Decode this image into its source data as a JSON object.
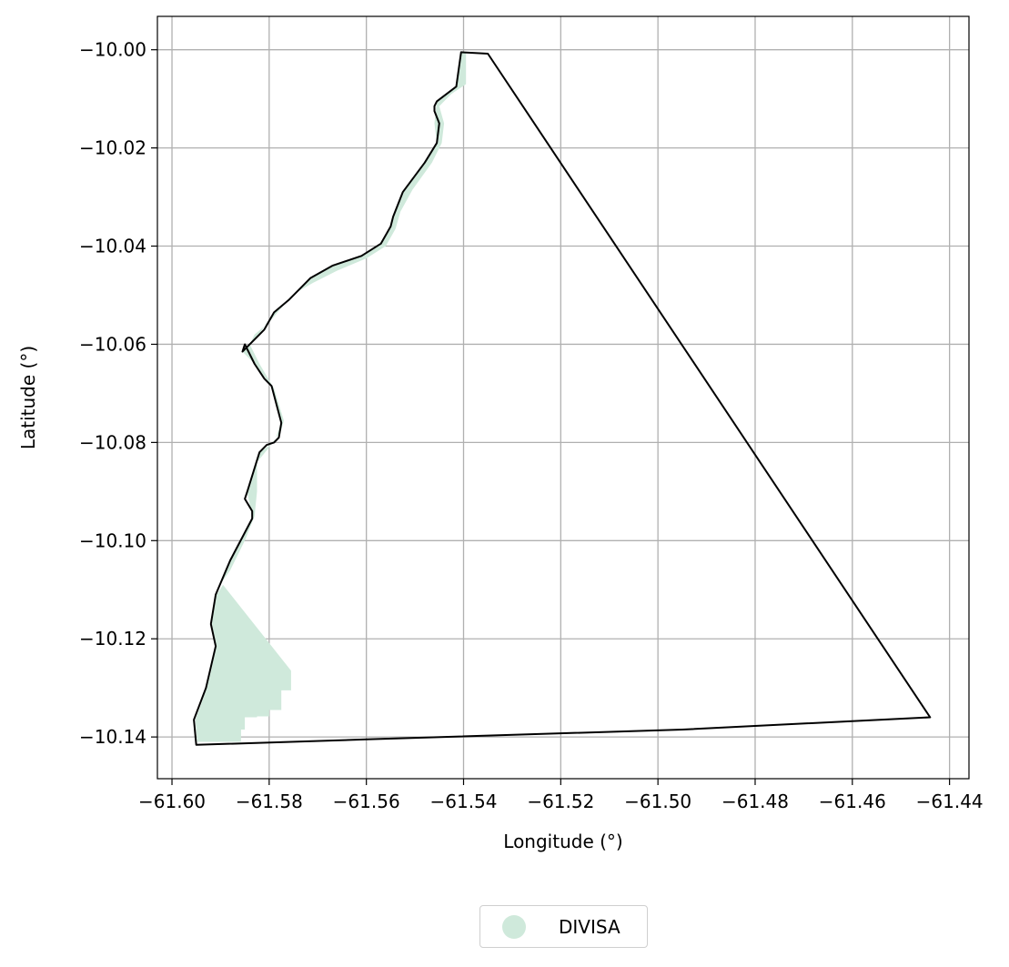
{
  "map": {
    "xlabel": "Longitude (°)",
    "ylabel": "Latitude (°)",
    "x_ticks": [
      -61.6,
      -61.58,
      -61.56,
      -61.54,
      -61.52,
      -61.5,
      -61.48,
      -61.46,
      -61.44
    ],
    "y_ticks": [
      -10.0,
      -10.02,
      -10.04,
      -10.06,
      -10.08,
      -10.1,
      -10.12,
      -10.14
    ],
    "xlim": [
      -61.603,
      -61.436
    ],
    "ylim": [
      -10.1485,
      -9.9932
    ],
    "grid": true,
    "colors": {
      "boundary": "#000000",
      "fill": "#cfe9db",
      "grid": "#b0b0b0"
    },
    "boundary_polygon": [
      [
        -61.595,
        -10.1416
      ],
      [
        -61.5955,
        -10.1365
      ],
      [
        -61.593,
        -10.13
      ],
      [
        -61.591,
        -10.1215
      ],
      [
        -61.592,
        -10.117
      ],
      [
        -61.591,
        -10.111
      ],
      [
        -61.588,
        -10.104
      ],
      [
        -61.5835,
        -10.0955
      ],
      [
        -61.5835,
        -10.094
      ],
      [
        -61.585,
        -10.0915
      ],
      [
        -61.5845,
        -10.09
      ],
      [
        -61.582,
        -10.082
      ],
      [
        -61.5805,
        -10.0805
      ],
      [
        -61.579,
        -10.08
      ],
      [
        -61.578,
        -10.079
      ],
      [
        -61.5775,
        -10.076
      ],
      [
        -61.5795,
        -10.0685
      ],
      [
        -61.581,
        -10.067
      ],
      [
        -61.583,
        -10.064
      ],
      [
        -61.585,
        -10.06
      ],
      [
        -61.5855,
        -10.0615
      ],
      [
        -61.5825,
        -10.0585
      ],
      [
        -61.581,
        -10.057
      ],
      [
        -61.579,
        -10.0535
      ],
      [
        -61.576,
        -10.051
      ],
      [
        -61.5735,
        -10.0485
      ],
      [
        -61.5715,
        -10.0465
      ],
      [
        -61.567,
        -10.044
      ],
      [
        -61.561,
        -10.042
      ],
      [
        -61.557,
        -10.0395
      ],
      [
        -61.555,
        -10.036
      ],
      [
        -61.5545,
        -10.034
      ],
      [
        -61.5525,
        -10.029
      ],
      [
        -61.548,
        -10.023
      ],
      [
        -61.5455,
        -10.019
      ],
      [
        -61.545,
        -10.015
      ],
      [
        -61.546,
        -10.0125
      ],
      [
        -61.546,
        -10.0115
      ],
      [
        -61.5455,
        -10.0105
      ],
      [
        -61.5435,
        -10.009
      ],
      [
        -61.5415,
        -10.0075
      ],
      [
        -61.5405,
        -10.0005
      ],
      [
        -61.535,
        -10.0008
      ],
      [
        -61.444,
        -10.136
      ],
      [
        -61.495,
        -10.1385
      ],
      [
        -61.56,
        -10.1405
      ],
      [
        -61.595,
        -10.1416
      ]
    ],
    "divisa_polygon": [
      [
        -61.5905,
        -10.1095
      ],
      [
        -61.588,
        -10.106
      ],
      [
        -61.585,
        -10.1
      ],
      [
        -61.583,
        -10.095
      ],
      [
        -61.5825,
        -10.09
      ],
      [
        -61.5825,
        -10.084
      ],
      [
        -61.58,
        -10.081
      ],
      [
        -61.5775,
        -10.0775
      ],
      [
        -61.577,
        -10.0755
      ],
      [
        -61.579,
        -10.069
      ],
      [
        -61.582,
        -10.064
      ],
      [
        -61.584,
        -10.06
      ],
      [
        -61.583,
        -10.058
      ],
      [
        -61.58,
        -10.0555
      ],
      [
        -61.577,
        -10.052
      ],
      [
        -61.5745,
        -10.0495
      ],
      [
        -61.571,
        -10.0475
      ],
      [
        -61.566,
        -10.045
      ],
      [
        -61.56,
        -10.0425
      ],
      [
        -61.556,
        -10.04
      ],
      [
        -61.554,
        -10.0365
      ],
      [
        -61.553,
        -10.033
      ],
      [
        -61.5505,
        -10.0285
      ],
      [
        -61.5465,
        -10.023
      ],
      [
        -61.5445,
        -10.019
      ],
      [
        -61.544,
        -10.015
      ],
      [
        -61.545,
        -10.0115
      ],
      [
        -61.5425,
        -10.009
      ],
      [
        -61.5395,
        -10.007
      ],
      [
        -61.5395,
        -10.0005
      ],
      [
        -61.5405,
        -10.0005
      ],
      [
        -61.5415,
        -10.0075
      ],
      [
        -61.5455,
        -10.0105
      ],
      [
        -61.546,
        -10.015
      ],
      [
        -61.5455,
        -10.019
      ],
      [
        -61.548,
        -10.023
      ],
      [
        -61.5525,
        -10.029
      ],
      [
        -61.555,
        -10.036
      ],
      [
        -61.557,
        -10.0395
      ],
      [
        -61.561,
        -10.042
      ],
      [
        -61.567,
        -10.044
      ],
      [
        -61.5715,
        -10.0465
      ],
      [
        -61.576,
        -10.051
      ],
      [
        -61.579,
        -10.0535
      ],
      [
        -61.5825,
        -10.0585
      ],
      [
        -61.5855,
        -10.0615
      ],
      [
        -61.583,
        -10.064
      ],
      [
        -61.5795,
        -10.0685
      ],
      [
        -61.5775,
        -10.076
      ],
      [
        -61.579,
        -10.08
      ],
      [
        -61.582,
        -10.082
      ],
      [
        -61.5845,
        -10.09
      ],
      [
        -61.5835,
        -10.0955
      ],
      [
        -61.588,
        -10.104
      ],
      [
        -61.5905,
        -10.1095
      ]
    ],
    "divisa_south_patch": [
      [
        -61.5895,
        -10.109
      ],
      [
        -61.5755,
        -10.1265
      ],
      [
        -61.5755,
        -10.1305
      ],
      [
        -61.5775,
        -10.1305
      ],
      [
        -61.5775,
        -10.1345
      ],
      [
        -61.58,
        -10.1345
      ],
      [
        -61.58,
        -10.1358
      ],
      [
        -61.5825,
        -10.1358
      ],
      [
        -61.5825,
        -10.136
      ],
      [
        -61.585,
        -10.136
      ],
      [
        -61.585,
        -10.1385
      ],
      [
        -61.5858,
        -10.1385
      ],
      [
        -61.5858,
        -10.141
      ],
      [
        -61.5948,
        -10.141
      ],
      [
        -61.5952,
        -10.1365
      ],
      [
        -61.5928,
        -10.13
      ],
      [
        -61.5908,
        -10.1215
      ],
      [
        -61.5918,
        -10.117
      ],
      [
        -61.5908,
        -10.111
      ]
    ]
  },
  "legend": {
    "label": "DIVISA",
    "marker_color": "#cfe9db"
  }
}
